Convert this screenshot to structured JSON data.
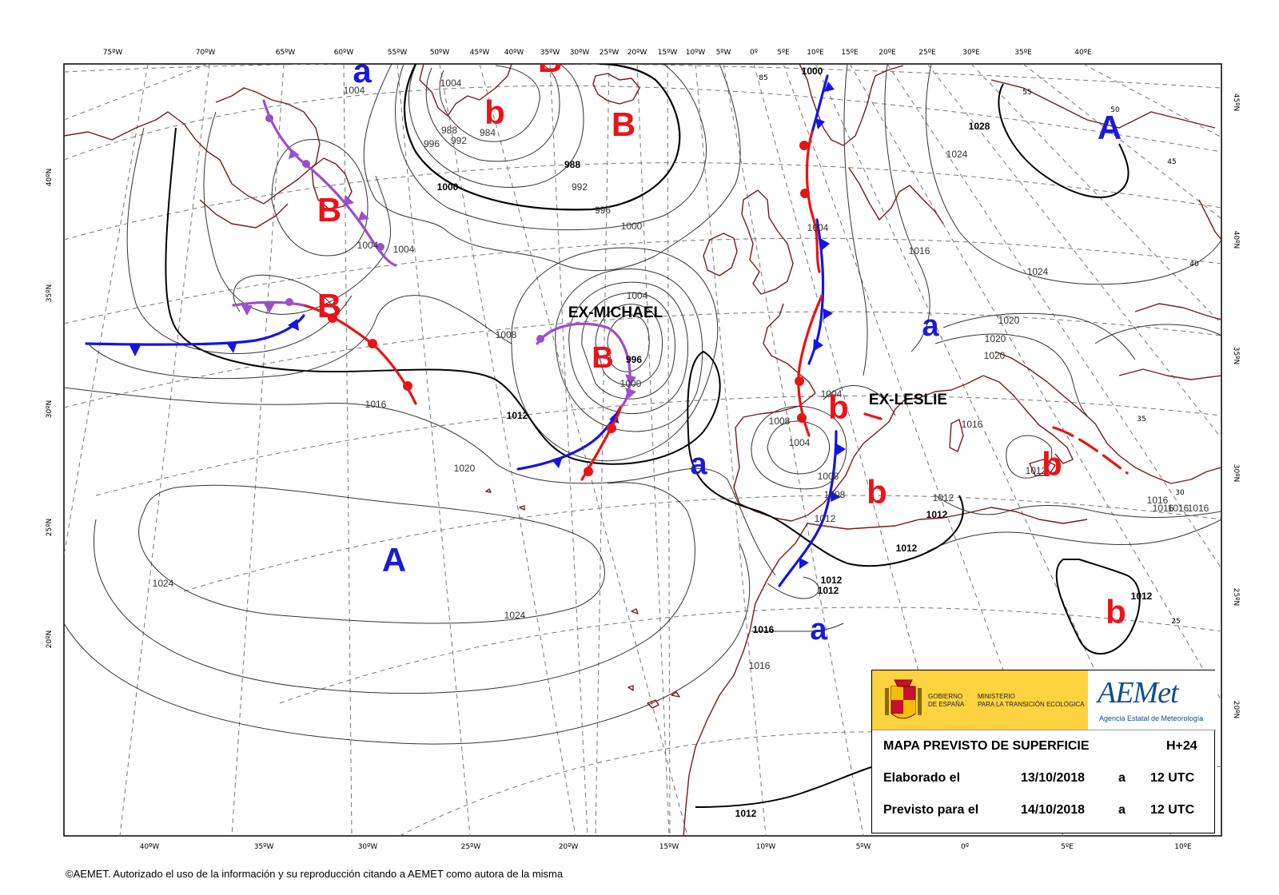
{
  "top_lon_labels": [
    "75ºW",
    "70ºW",
    "65ºW",
    "60ºW",
    "55ºW",
    "50ºW",
    "45ºW",
    "40ºW",
    "35ºW",
    "30ºW",
    "25ºW",
    "20ºW",
    "15ºW",
    "10ºW",
    "5ºW",
    "0º",
    "5ºE",
    "10ºE",
    "15ºE",
    "20ºE",
    "25ºE",
    "30ºE",
    "35ºE",
    "40ºE"
  ],
  "bottom_lon_labels": [
    "40ºW",
    "35ºW",
    "30ºW",
    "25ºW",
    "20ºW",
    "15ºW",
    "10ºW",
    "5ºW",
    "0º",
    "5ºE",
    "10ºE"
  ],
  "left_lat_labels": [
    "40ºN",
    "35ºN",
    "30ºN",
    "25ºN",
    "20ºN"
  ],
  "right_lat_labels": [
    "45ºN",
    "40ºN",
    "35ºN",
    "30ºN",
    "25ºN",
    "20ºN"
  ],
  "isobar_labels": [
    "1004",
    "1004",
    "984",
    "988",
    "992",
    "996",
    "1000",
    "988",
    "992",
    "996",
    "1000",
    "1004",
    "1004",
    "1008",
    "996",
    "1000",
    "1004",
    "1000",
    "1004",
    "1016",
    "1020",
    "1024",
    "1024",
    "1016",
    "1016",
    "1008",
    "1004",
    "1004",
    "1008",
    "1008",
    "1012",
    "1012",
    "1012",
    "1012",
    "1012",
    "1016",
    "1016",
    "1020",
    "1020",
    "1024",
    "1020",
    "1016",
    "1028",
    "1024",
    "1016",
    "1012",
    "1016",
    "1016",
    "1012",
    "1012",
    "1012",
    "1012"
  ],
  "lat_inner_labels": [
    "85",
    "55",
    "50",
    "45",
    "40",
    "35",
    "30",
    "25"
  ],
  "pressure_systems": {
    "high_label": "A",
    "low_label": "B",
    "rel_high_label": "a",
    "rel_low_label": "b",
    "high_color": "#1a1ad6",
    "low_color": "#e8141a"
  },
  "storms": [
    "EX-MICHAEL",
    "EX-LESLIE"
  ],
  "colors": {
    "cold_front": "#1414e6",
    "warm_front": "#e81414",
    "occluded_front": "#9b4fc9",
    "coast": "#7a1a1a",
    "isobar": "#333333",
    "grid": "#777777"
  },
  "info": {
    "gov_line1": "GOBIERNO",
    "gov_line2": "DE ESPAÑA",
    "ministry_line1": "MINISTERIO",
    "ministry_line2": "PARA LA TRANSICIÓN ECOLÓGICA",
    "brand": "AEMet",
    "brand_sub": "Agencia Estatal de Meteorología",
    "title": "MAPA PREVISTO DE SUPERFICIE",
    "horizon": "H+24",
    "elab_label": "Elaborado el",
    "elab_date": "13/10/2018",
    "elab_a": "a",
    "elab_time": "12 UTC",
    "prev_label": "Previsto para el",
    "prev_date": "14/10/2018",
    "prev_a": "a",
    "prev_time": "12 UTC"
  },
  "copyright": "©AEMET. Autorizado el uso de la información y su reproducción citando a AEMET como autora de la misma"
}
